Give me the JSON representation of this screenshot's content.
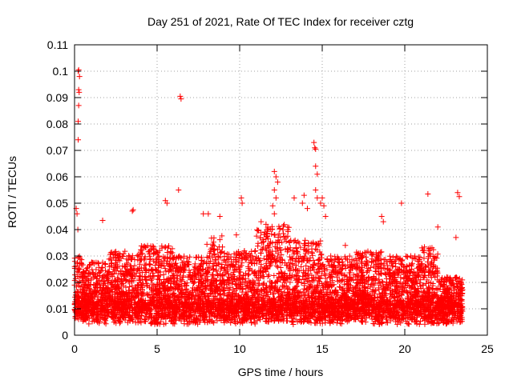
{
  "chart_data": {
    "type": "scatter",
    "title": "Day 251 of 2021, Rate Of TEC Index for receiver cztg",
    "xlabel": "GPS time / hours",
    "ylabel": "ROTI / TECUs",
    "xlim": [
      0,
      25
    ],
    "ylim": [
      0,
      0.11
    ],
    "x_ticks": [
      0,
      5,
      10,
      15,
      20,
      25
    ],
    "y_ticks": [
      0,
      0.01,
      0.02,
      0.03,
      0.04,
      0.05,
      0.06,
      0.07,
      0.08,
      0.09,
      0.1,
      0.11
    ],
    "x_tick_labels": [
      "0",
      "5",
      "10",
      "15",
      "20",
      "25"
    ],
    "y_tick_labels": [
      "0",
      "0.01",
      "0.02",
      "0.03",
      "0.04",
      "0.05",
      "0.06",
      "0.07",
      "0.08",
      "0.09",
      "0.1",
      "0.11"
    ],
    "grid": true,
    "marker": "plus",
    "color": "#ff0000",
    "series": [
      {
        "name": "ROTI",
        "points": [
          [
            0.1,
            0.048
          ],
          [
            0.15,
            0.046
          ],
          [
            0.2,
            0.04
          ],
          [
            0.22,
            0.1
          ],
          [
            0.25,
            0.1005
          ],
          [
            0.3,
            0.098
          ],
          [
            0.25,
            0.093
          ],
          [
            0.28,
            0.092
          ],
          [
            0.25,
            0.087
          ],
          [
            0.22,
            0.081
          ],
          [
            0.22,
            0.074
          ],
          [
            6.4,
            0.0905
          ],
          [
            6.45,
            0.0895
          ],
          [
            6.3,
            0.055
          ],
          [
            5.5,
            0.051
          ],
          [
            5.6,
            0.05
          ],
          [
            3.5,
            0.047
          ],
          [
            3.55,
            0.0475
          ],
          [
            1.7,
            0.0435
          ],
          [
            7.8,
            0.046
          ],
          [
            8.1,
            0.046
          ],
          [
            8.8,
            0.045
          ],
          [
            10.1,
            0.052
          ],
          [
            10.15,
            0.05
          ],
          [
            12.1,
            0.062
          ],
          [
            12.2,
            0.06
          ],
          [
            12.3,
            0.058
          ],
          [
            12.1,
            0.055
          ],
          [
            12.2,
            0.052
          ],
          [
            12.0,
            0.049
          ],
          [
            12.1,
            0.046
          ],
          [
            13.3,
            0.052
          ],
          [
            13.8,
            0.05
          ],
          [
            13.9,
            0.053
          ],
          [
            14.1,
            0.048
          ],
          [
            14.5,
            0.073
          ],
          [
            14.55,
            0.071
          ],
          [
            14.6,
            0.0705
          ],
          [
            14.6,
            0.064
          ],
          [
            14.7,
            0.061
          ],
          [
            14.6,
            0.055
          ],
          [
            14.7,
            0.052
          ],
          [
            14.9,
            0.05
          ],
          [
            15.0,
            0.052
          ],
          [
            15.1,
            0.049
          ],
          [
            15.2,
            0.045
          ],
          [
            18.6,
            0.045
          ],
          [
            18.7,
            0.043
          ],
          [
            19.8,
            0.05
          ],
          [
            21.4,
            0.0535
          ],
          [
            22.0,
            0.041
          ],
          [
            23.2,
            0.054
          ],
          [
            23.3,
            0.0525
          ],
          [
            23.1,
            0.037
          ],
          [
            2.9,
            0.03
          ],
          [
            9.8,
            0.038
          ],
          [
            11.3,
            0.043
          ],
          [
            16.4,
            0.034
          ]
        ],
        "bands": [
          [
            0,
            0.5,
            0.006,
            0.03
          ],
          [
            0.5,
            2,
            0.004,
            0.028
          ],
          [
            2,
            4,
            0.004,
            0.032
          ],
          [
            4,
            6,
            0.004,
            0.034
          ],
          [
            6,
            8,
            0.004,
            0.03
          ],
          [
            8,
            9,
            0.004,
            0.038
          ],
          [
            9,
            11,
            0.004,
            0.032
          ],
          [
            11,
            13,
            0.005,
            0.042
          ],
          [
            13,
            15,
            0.004,
            0.036
          ],
          [
            15,
            17,
            0.004,
            0.03
          ],
          [
            17,
            19,
            0.004,
            0.032
          ],
          [
            19,
            21,
            0.004,
            0.03
          ],
          [
            21,
            22,
            0.003,
            0.034
          ],
          [
            22,
            23.5,
            0.002,
            0.022
          ]
        ]
      }
    ]
  }
}
